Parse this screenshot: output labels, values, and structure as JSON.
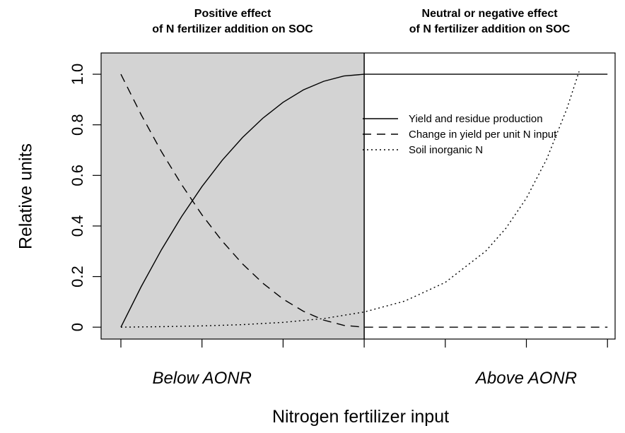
{
  "chart_data": {
    "type": "line",
    "ylabel": "Relative units",
    "xlabel": "Nitrogen fertilizer input",
    "xlim": [
      -0.244,
      6.094
    ],
    "ylim": [
      -0.047,
      1.084
    ],
    "xticks": [
      0,
      1,
      2,
      3,
      4,
      5,
      6
    ],
    "yticks": [
      0,
      0.2,
      0.4,
      0.6,
      0.8,
      {
        "value": 1,
        "label": "1.0"
      }
    ],
    "legend": "right",
    "regions": [
      {
        "name": "Below AONR",
        "effect": [
          "Positive effect",
          "of N fertilizer addition on SOC"
        ],
        "x": [
          0,
          3
        ],
        "shaded": true,
        "color": "#d3d3d3"
      },
      {
        "name": "Above AONR",
        "effect": [
          "Neutral or negative effect",
          "of N fertilizer addition on SOC"
        ],
        "x": [
          3,
          6
        ],
        "shaded": false,
        "color": "#ffffff"
      }
    ],
    "series": [
      {
        "name": "Yield and residue production",
        "color": "#000000",
        "dash": "solid",
        "x": [
          0,
          0.25,
          0.5,
          0.75,
          1,
          1.25,
          1.5,
          1.75,
          2,
          2.25,
          2.5,
          2.75,
          3,
          6
        ],
        "values": [
          0,
          0.16,
          0.306,
          0.438,
          0.556,
          0.66,
          0.75,
          0.826,
          0.889,
          0.938,
          0.972,
          0.993,
          1,
          1
        ]
      },
      {
        "name": "Change in yield per unit N input",
        "color": "#000000",
        "dash": "dashed",
        "x": [
          0,
          0.25,
          0.5,
          0.75,
          1,
          1.25,
          1.5,
          1.75,
          2,
          2.25,
          2.5,
          2.75,
          3,
          6
        ],
        "values": [
          1,
          0.84,
          0.694,
          0.563,
          0.444,
          0.34,
          0.25,
          0.174,
          0.111,
          0.063,
          0.028,
          0.007,
          0,
          0
        ]
      },
      {
        "name": "Soil inorganic N",
        "color": "#000000",
        "dash": "dotted",
        "x": [
          0,
          0.5,
          1,
          1.5,
          2,
          2.5,
          3,
          3.5,
          4,
          4.5,
          4.75,
          5,
          5.25,
          5.5,
          5.65
        ],
        "values": [
          0,
          0.002,
          0.005,
          0.01,
          0.019,
          0.034,
          0.06,
          0.103,
          0.177,
          0.301,
          0.392,
          0.51,
          0.664,
          0.864,
          1.011
        ]
      }
    ]
  }
}
